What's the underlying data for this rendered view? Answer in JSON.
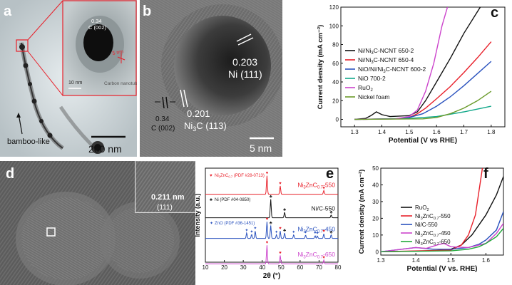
{
  "panels": {
    "a": {
      "letter": "a",
      "inset_spacing": "0.34",
      "inset_plane": "C (002)",
      "inset_size": "5 nm",
      "inset_scale": "10 nm",
      "inset_tube": "Carbon nanotube",
      "bamboo": "bamboo-like",
      "scale": "200 nm"
    },
    "b": {
      "letter": "b",
      "ni_spacing": "0.203",
      "ni_plane": "Ni (111)",
      "c_spacing": "0.34",
      "c_plane": "C (002)",
      "ni3c_spacing": "0.201",
      "ni3c_plane": "Ni",
      "ni3c_sub": "3",
      "ni3c_plane_tail": "C (113)",
      "scale": "5 nm"
    },
    "d": {
      "letter": "d",
      "inset_spacing": "0.211 nm",
      "inset_plane": "(111)"
    }
  },
  "chart_data": [
    {
      "id": "c",
      "type": "line",
      "letter": "c",
      "xlabel": "Potential (V vs RHE)",
      "ylabel": "Current density (mA cm⁻²)",
      "xlim": [
        1.25,
        1.85
      ],
      "ylim": [
        -8,
        120
      ],
      "xticks": [
        1.3,
        1.4,
        1.5,
        1.6,
        1.7,
        1.8
      ],
      "yticks": [
        0,
        20,
        40,
        60,
        80,
        100,
        120
      ],
      "xtick_labels": [
        "1.3",
        "1.4",
        "1.5",
        "1.6",
        "1.7",
        "1.8"
      ],
      "ytick_labels": [
        "0",
        "20",
        "40",
        "60",
        "80",
        "100",
        "120"
      ],
      "legend": [
        {
          "label": "Ni/Ni",
          "sub": "3",
          "tail": "C-NCNT 650-2",
          "color": "#111111"
        },
        {
          "label": "Ni/Ni",
          "sub": "3",
          "tail": "C-NCNT 650-4",
          "color": "#e8202a"
        },
        {
          "label": "NiO/Ni/Ni",
          "sub": "3",
          "tail": "C-NCNT 600-2",
          "color": "#2a52be"
        },
        {
          "label": "NiO 700-2",
          "sub": "",
          "tail": "",
          "color": "#12a88a"
        },
        {
          "label": "RuO",
          "sub": "2",
          "tail": "",
          "color": "#cc44cc"
        },
        {
          "label": "Nickel foam",
          "sub": "",
          "tail": "",
          "color": "#6a9a2a"
        }
      ],
      "series": [
        {
          "color": "#111111",
          "x": [
            1.3,
            1.34,
            1.36,
            1.38,
            1.4,
            1.43,
            1.5,
            1.53,
            1.56,
            1.6,
            1.65,
            1.7,
            1.76
          ],
          "y": [
            0,
            1,
            4,
            8,
            5,
            3,
            4,
            8,
            20,
            40,
            65,
            92,
            120
          ]
        },
        {
          "color": "#e8202a",
          "x": [
            1.3,
            1.45,
            1.5,
            1.53,
            1.56,
            1.6,
            1.65,
            1.7,
            1.75,
            1.8
          ],
          "y": [
            0,
            0.5,
            2,
            6,
            12,
            22,
            35,
            50,
            66,
            83
          ]
        },
        {
          "color": "#2a52be",
          "x": [
            1.3,
            1.45,
            1.5,
            1.55,
            1.6,
            1.65,
            1.7,
            1.75,
            1.8
          ],
          "y": [
            0,
            0.5,
            2,
            6,
            14,
            24,
            36,
            49,
            62
          ]
        },
        {
          "color": "#12a88a",
          "x": [
            1.3,
            1.5,
            1.6,
            1.7,
            1.8
          ],
          "y": [
            0,
            1,
            3,
            8,
            14
          ]
        },
        {
          "color": "#cc44cc",
          "x": [
            1.3,
            1.45,
            1.5,
            1.53,
            1.56,
            1.59,
            1.62,
            1.64
          ],
          "y": [
            0,
            0.5,
            3,
            10,
            30,
            60,
            100,
            120
          ]
        },
        {
          "color": "#6a9a2a",
          "x": [
            1.3,
            1.55,
            1.6,
            1.65,
            1.7,
            1.75,
            1.8
          ],
          "y": [
            0,
            0.5,
            2,
            6,
            12,
            20,
            30
          ]
        }
      ]
    },
    {
      "id": "e",
      "type": "line",
      "letter": "e",
      "xlabel": "2θ (°)",
      "ylabel": "Intensity (a.u.)",
      "xlim": [
        10,
        80
      ],
      "xticks": [
        10,
        20,
        30,
        40,
        50,
        60,
        70,
        80
      ],
      "xtick_labels": [
        "10",
        "20",
        "30",
        "40",
        "50",
        "60",
        "70",
        "80"
      ],
      "refs": [
        {
          "label": "Ni",
          "sub": "3",
          "tail": "ZnC",
          "sub2": "0.7",
          "tail2": " (PDF #28-0713)",
          "color": "#e8202a",
          "glyph": "♥"
        },
        {
          "label": "Ni (PDF #04-0850)",
          "sub": "",
          "tail": "",
          "sub2": "",
          "tail2": "",
          "color": "#111111",
          "glyph": "♣"
        },
        {
          "label": "ZnO (PDF #36-1451)",
          "sub": "",
          "tail": "",
          "sub2": "",
          "tail2": "",
          "color": "#2a52be",
          "glyph": "✦"
        }
      ],
      "series": [
        {
          "name_pre": "Ni",
          "name_sub": "3",
          "name_mid": "ZnC",
          "name_sub2": "0.7",
          "name_tail": "-550",
          "color": "#e8202a",
          "baseline": 0.08,
          "peaks": [
            [
              42.5,
              1.0
            ],
            [
              49.5,
              0.45
            ],
            [
              72.5,
              0.2
            ]
          ],
          "markers": [
            [
              42.5,
              "♥"
            ],
            [
              49.5,
              "♥"
            ],
            [
              72.5,
              "♥"
            ]
          ]
        },
        {
          "name_pre": "Ni/C-550",
          "name_sub": "",
          "name_mid": "",
          "name_sub2": "",
          "name_tail": "",
          "color": "#111111",
          "baseline": 0.33,
          "peaks": [
            [
              44.5,
              1.0
            ],
            [
              51.8,
              0.3
            ],
            [
              76.4,
              0.15
            ]
          ],
          "markers": [
            [
              44.5,
              "♣"
            ],
            [
              51.8,
              "♣"
            ],
            [
              76.4,
              "♣"
            ]
          ]
        },
        {
          "name_pre": "Ni",
          "name_sub": "3",
          "name_mid": "ZnC",
          "name_sub2": "0.7",
          "name_tail": "-450",
          "color": "#2a52be",
          "baseline": 0.55,
          "peaks": [
            [
              31.8,
              0.3
            ],
            [
              34.4,
              0.22
            ],
            [
              36.3,
              0.4
            ],
            [
              42.5,
              0.9
            ],
            [
              44.5,
              0.7
            ],
            [
              47.5,
              0.2
            ],
            [
              49.5,
              0.4
            ],
            [
              51.8,
              0.3
            ],
            [
              56.6,
              0.2
            ],
            [
              62.9,
              0.18
            ],
            [
              67.9,
              0.15
            ],
            [
              69.1,
              0.14
            ],
            [
              72.5,
              0.25
            ],
            [
              76.4,
              0.2
            ]
          ],
          "markers": [
            [
              31.8,
              "✦"
            ],
            [
              34.4,
              "✦"
            ],
            [
              36.3,
              "✦"
            ],
            [
              42.5,
              "♥"
            ],
            [
              44.5,
              "♣"
            ],
            [
              47.5,
              "✦"
            ],
            [
              49.5,
              "♥"
            ],
            [
              51.8,
              "♣"
            ],
            [
              56.6,
              "✦"
            ],
            [
              62.9,
              "✦"
            ],
            [
              67.9,
              "✦"
            ],
            [
              69.1,
              "✦"
            ],
            [
              72.5,
              "♥"
            ],
            [
              76.4,
              "♣"
            ]
          ]
        },
        {
          "name_pre": "Ni",
          "name_sub": "3",
          "name_mid": "ZnC",
          "name_sub2": "0.7",
          "name_tail": "-650",
          "color": "#cc44cc",
          "baseline": 0.82,
          "peaks": [
            [
              42.5,
              1.0
            ],
            [
              49.5,
              0.45
            ],
            [
              72.5,
              0.2
            ]
          ],
          "markers": [
            [
              42.5,
              "♥"
            ],
            [
              49.5,
              "♥"
            ],
            [
              72.5,
              "♥"
            ]
          ]
        }
      ]
    },
    {
      "id": "f",
      "type": "line",
      "letter": "f",
      "xlabel": "Potential (V vs. RHE)",
      "ylabel": "Current density (mA cm⁻²)",
      "xlim": [
        1.3,
        1.65
      ],
      "ylim": [
        -2,
        50
      ],
      "xticks": [
        1.3,
        1.4,
        1.5,
        1.6
      ],
      "yticks": [
        0,
        10,
        20,
        30,
        40,
        50
      ],
      "xtick_labels": [
        "1.3",
        "1.4",
        "1.5",
        "1.6"
      ],
      "ytick_labels": [
        "0",
        "10",
        "20",
        "30",
        "40",
        "50"
      ],
      "legend": [
        {
          "label": "RuO",
          "sub": "2",
          "mid": "",
          "sub2": "",
          "tail": "",
          "color": "#111111"
        },
        {
          "label": "Ni",
          "sub": "3",
          "mid": "ZnC",
          "sub2": "0.7",
          "tail": "-550",
          "color": "#e8202a"
        },
        {
          "label": "Ni/C-550",
          "sub": "",
          "mid": "",
          "sub2": "",
          "tail": "",
          "color": "#2a52be"
        },
        {
          "label": "Ni",
          "sub": "3",
          "mid": "ZnC",
          "sub2": "0.7",
          "tail": "-450",
          "color": "#cc44cc"
        },
        {
          "label": "Ni",
          "sub": "3",
          "mid": "ZnC",
          "sub2": "0.7",
          "tail": "-650",
          "color": "#21a83a"
        }
      ],
      "series": [
        {
          "color": "#111111",
          "x": [
            1.3,
            1.45,
            1.5,
            1.53,
            1.56,
            1.6,
            1.63,
            1.65
          ],
          "y": [
            0,
            0.5,
            1.5,
            4,
            10,
            22,
            34,
            45
          ]
        },
        {
          "color": "#e8202a",
          "x": [
            1.3,
            1.5,
            1.53,
            1.55,
            1.57,
            1.58,
            1.59
          ],
          "y": [
            0,
            1,
            4,
            10,
            22,
            36,
            50
          ]
        },
        {
          "color": "#2a52be",
          "x": [
            1.3,
            1.38,
            1.4,
            1.45,
            1.5,
            1.55,
            1.58,
            1.6,
            1.63,
            1.65
          ],
          "y": [
            0,
            2,
            2.5,
            1.5,
            1.5,
            2.5,
            4.5,
            7,
            13,
            24
          ]
        },
        {
          "color": "#cc44cc",
          "x": [
            1.3,
            1.36,
            1.4,
            1.43,
            1.46,
            1.48,
            1.5,
            1.55,
            1.6,
            1.63,
            1.65
          ],
          "y": [
            0,
            1.5,
            2.5,
            2,
            4,
            5,
            3,
            2.5,
            5,
            11,
            17
          ]
        },
        {
          "color": "#21a83a",
          "x": [
            1.3,
            1.5,
            1.55,
            1.58,
            1.6,
            1.63,
            1.65
          ],
          "y": [
            0,
            0.5,
            1.5,
            3,
            5,
            9,
            14
          ]
        }
      ]
    }
  ]
}
